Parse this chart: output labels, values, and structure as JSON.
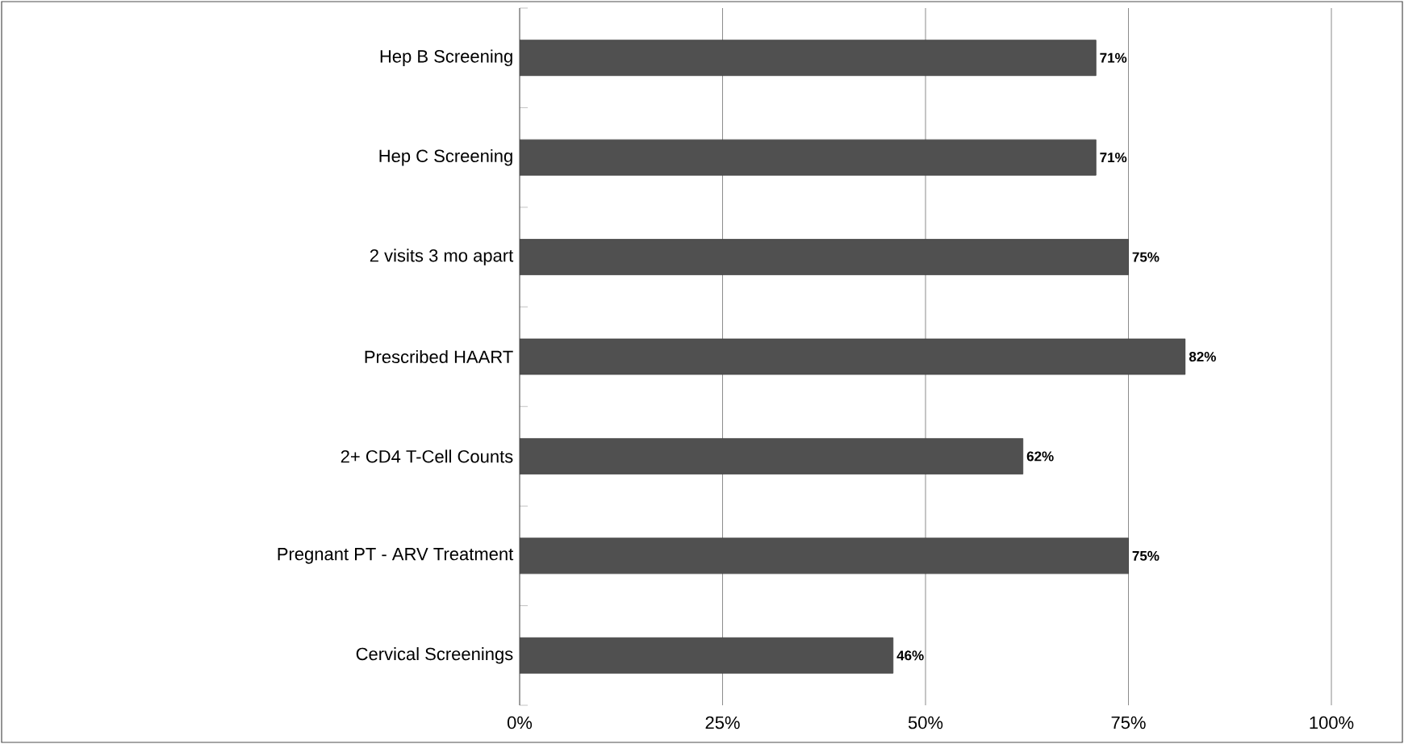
{
  "chart_data": {
    "type": "bar",
    "orientation": "horizontal",
    "categories": [
      "Hep B Screening",
      "Hep C Screening",
      "2 visits 3 mo apart",
      "Prescribed HAART",
      "2+ CD4 T-Cell Counts",
      "Pregnant PT - ARV Treatment",
      "Cervical Screenings"
    ],
    "values": [
      71,
      71,
      75,
      82,
      62,
      75,
      46
    ],
    "value_labels": [
      "71%",
      "71%",
      "75%",
      "82%",
      "62%",
      "75%",
      "46%"
    ],
    "color": "#505050",
    "xlim": [
      0,
      100
    ],
    "xticks": [
      {
        "value": 0,
        "label": "0%"
      },
      {
        "value": 25,
        "label": "25%"
      },
      {
        "value": 50,
        "label": "50%"
      },
      {
        "value": 75,
        "label": "75%"
      },
      {
        "value": 100,
        "label": "100%"
      }
    ],
    "grid": "x"
  }
}
